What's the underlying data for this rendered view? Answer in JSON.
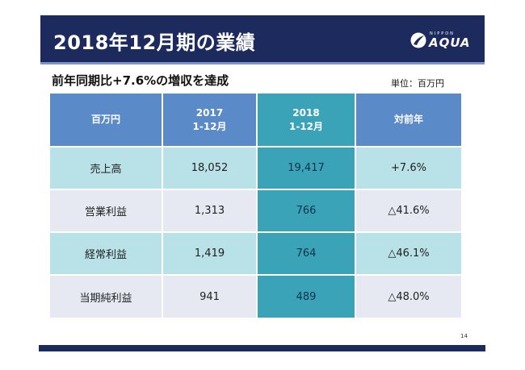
{
  "header": {
    "title": "2018年12月期の業績",
    "logo": {
      "small_text": "NIPPON",
      "main_text": "AQUA"
    }
  },
  "subtitle": "前年同期比+7.6%の増収を達成",
  "unit": "単位：百万円",
  "table": {
    "headers": {
      "label": "百万円",
      "y2017": [
        "2017",
        "1-12月"
      ],
      "y2018": [
        "2018",
        "1-12月"
      ],
      "yoy": "対前年"
    },
    "rows": [
      {
        "label": "売上高",
        "y2017": "18,052",
        "y2018": "19,417",
        "yoy": "+7.6%"
      },
      {
        "label": "営業利益",
        "y2017": "1,313",
        "y2018": "766",
        "yoy": "△41.6%"
      },
      {
        "label": "経常利益",
        "y2017": "1,419",
        "y2018": "764",
        "yoy": "△46.1%"
      },
      {
        "label": "当期純利益",
        "y2017": "941",
        "y2018": "489",
        "yoy": "△48.0%"
      }
    ]
  },
  "page_number": "14",
  "colors": {
    "header_bg": "#1c2a5e",
    "table_header": "#5b8ac9",
    "highlight_2018": "#3aa3b8",
    "row_light_blue": "#b9e1e8",
    "row_light_gray": "#e6e9f2"
  }
}
